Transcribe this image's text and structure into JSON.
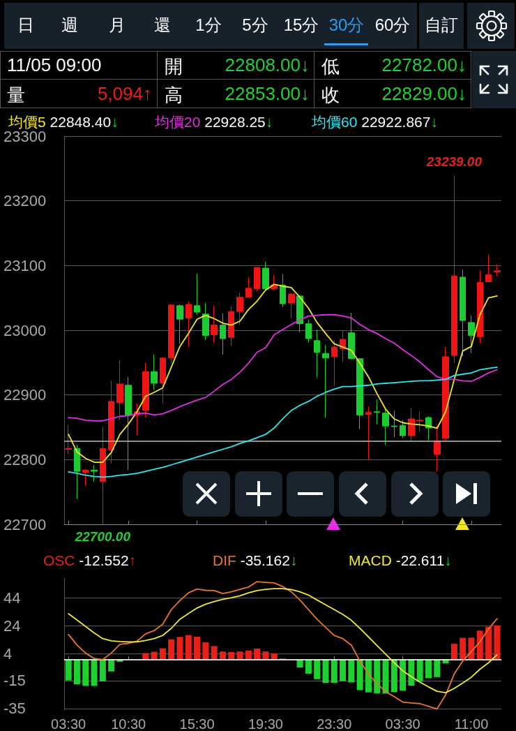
{
  "chart_data": [
    {
      "type": "candlestick",
      "categories": [
        "03:30",
        null,
        null,
        null,
        null,
        null,
        null,
        "10:30",
        null,
        null,
        null,
        null,
        null,
        null,
        null,
        "15:30",
        null,
        null,
        null,
        null,
        null,
        null,
        null,
        "19:30",
        null,
        null,
        null,
        null,
        null,
        null,
        null,
        "23:30",
        null,
        null,
        null,
        null,
        null,
        null,
        null,
        "03:30",
        null,
        null,
        null,
        null,
        null,
        null,
        null,
        "11:00",
        null,
        null,
        null
      ],
      "ohlc": [
        [
          22816,
          22853,
          22809,
          22817
        ],
        [
          22817,
          22823,
          22739,
          22782
        ],
        [
          22780,
          22785,
          22760,
          22784
        ],
        [
          22784,
          22792,
          22766,
          22782
        ],
        [
          22766,
          22851,
          22700,
          22817
        ],
        [
          22815,
          22922,
          22794,
          22890
        ],
        [
          22888,
          22954,
          22861,
          22917
        ],
        [
          22915,
          22928,
          22784,
          22869
        ],
        [
          22869,
          22887,
          22838,
          22874
        ],
        [
          22876,
          22950,
          22865,
          22936
        ],
        [
          22936,
          22963,
          22908,
          22918
        ],
        [
          22918,
          22958,
          22887,
          22957
        ],
        [
          22957,
          23040,
          22949,
          23039
        ],
        [
          23038,
          23040,
          22979,
          23017
        ],
        [
          23019,
          23045,
          22974,
          23040
        ],
        [
          23038,
          23088,
          23024,
          23028
        ],
        [
          23025,
          23042,
          22985,
          22992
        ],
        [
          22993,
          23038,
          22981,
          23008
        ],
        [
          23008,
          23026,
          22962,
          22987
        ],
        [
          22989,
          23037,
          22976,
          23029
        ],
        [
          23029,
          23058,
          23008,
          23051
        ],
        [
          23051,
          23082,
          23051,
          23065
        ],
        [
          23064,
          23097,
          23060,
          23097
        ],
        [
          23096,
          23106,
          23062,
          23064
        ],
        [
          23064,
          23085,
          23062,
          23070
        ],
        [
          23070,
          23087,
          23036,
          23041
        ],
        [
          23042,
          23058,
          23018,
          23056
        ],
        [
          23053,
          23054,
          22997,
          23010
        ],
        [
          23010,
          23016,
          22981,
          22987
        ],
        [
          22984,
          23001,
          22927,
          22966
        ],
        [
          22964,
          22977,
          22865,
          22957
        ],
        [
          22959,
          22985,
          22914,
          22974
        ],
        [
          22971,
          22999,
          22951,
          22986
        ],
        [
          22996,
          23027,
          22955,
          22956
        ],
        [
          22956,
          22957,
          22847,
          22869
        ],
        [
          22870,
          22882,
          22800,
          22873
        ],
        [
          22874,
          22893,
          22855,
          22873
        ],
        [
          22872,
          22881,
          22823,
          22852
        ],
        [
          22852,
          22876,
          22835,
          22851
        ],
        [
          22853,
          22861,
          22833,
          22837
        ],
        [
          22837,
          22880,
          22828,
          22863
        ],
        [
          22860,
          22874,
          22843,
          22861
        ],
        [
          22865,
          22867,
          22830,
          22849
        ],
        [
          22808,
          22853,
          22782,
          22829
        ],
        [
          22833,
          22974,
          22829,
          22959
        ],
        [
          22961,
          23239,
          22949,
          23084
        ],
        [
          23082,
          23094,
          22960,
          23015
        ],
        [
          23012,
          23023,
          22965,
          22992
        ],
        [
          22990,
          23093,
          22980,
          23074
        ],
        [
          23075,
          23117,
          23075,
          23086
        ],
        [
          23090,
          23102,
          23084,
          23092
        ]
      ],
      "colors": [
        "#f01414",
        "#1ccc32",
        "#f01414",
        "#1ccc32",
        "#f01414",
        "#f01414",
        "#f01414",
        "#1ccc32",
        "#f01414",
        "#f01414",
        "#1ccc32",
        "#f01414",
        "#f01414",
        "#1ccc32",
        "#f01414",
        "#1ccc32",
        "#1ccc32",
        "#f01414",
        "#1ccc32",
        "#f01414",
        "#f01414",
        "#f01414",
        "#f01414",
        "#1ccc32",
        "#f01414",
        "#1ccc32",
        "#f01414",
        "#1ccc32",
        "#1ccc32",
        "#1ccc32",
        "#1ccc32",
        "#f01414",
        "#f01414",
        "#1ccc32",
        "#1ccc32",
        "#f01414",
        "#1ccc32",
        "#1ccc32",
        "#1ccc32",
        "#1ccc32",
        "#f01414",
        "#f01414",
        "#1ccc32",
        "#f01414",
        "#f01414",
        "#f01414",
        "#1ccc32",
        "#1ccc32",
        "#f01414",
        "#f01414",
        "#f01414"
      ],
      "series": [
        {
          "type": "line",
          "name": "均價5",
          "color": "#f2e62b",
          "values": [
            22839,
            22812,
            22802,
            22796,
            22796,
            22811,
            22839,
            22855,
            22874,
            22898,
            22904,
            22911,
            22943,
            22975,
            22995,
            23017,
            23023,
            23018,
            23011,
            23008,
            23014,
            23032,
            23045,
            23062,
            23071,
            23068,
            23066,
            23051,
            23034,
            23012,
            22995,
            22979,
            22974,
            22969,
            22949,
            22928,
            22902,
            22878,
            22863,
            22857,
            22855,
            22854,
            22852,
            22848.4,
            22874,
            22924,
            22968,
            22975,
            23024,
            23050,
            23053
          ]
        },
        {
          "type": "line",
          "name": "均價20",
          "color": "#e22ee2",
          "values": [
            22865,
            22864,
            22861,
            22860,
            22860,
            22863,
            22867,
            22868,
            22871,
            22872,
            22869,
            22871,
            22876,
            22882,
            22887,
            22892,
            22896,
            22906,
            22916,
            22924,
            22935,
            22949,
            22966,
            22973,
            22993,
            23001,
            23009,
            23016,
            23022,
            23023,
            23024,
            23024,
            23022,
            23019,
            23009,
            23001,
            22995,
            22987,
            22980,
            22970,
            22961,
            22951,
            22939,
            22928.25,
            22924,
            22924,
            22922,
            22921,
            22927,
            22934,
            22939
          ]
        },
        {
          "type": "line",
          "name": "均價60",
          "color": "#2ee6ee",
          "values": [
            22781,
            22779,
            22776,
            22774,
            22773,
            22774,
            22776,
            22777,
            22779,
            22782,
            22785,
            22788,
            22792,
            22796,
            22800,
            22804,
            22808,
            22812,
            22816,
            22820,
            22825,
            22829,
            22834,
            22839,
            22849,
            22863,
            22876,
            22884,
            22890,
            22898,
            22904,
            22909,
            22913,
            22913,
            22914,
            22915,
            22917,
            22918,
            22919,
            22920,
            22921,
            22922,
            22922,
            22922.867,
            22924,
            22930,
            22932,
            22934,
            22939,
            22941,
            22943
          ]
        }
      ],
      "ylim": [
        22700,
        23300
      ],
      "yticks": [
        22700,
        22800,
        22900,
        23000,
        23100,
        23200,
        23300
      ],
      "grid": "y",
      "tick_labels": "y",
      "legend": "top left",
      "marker": "none",
      "ref_lines": [
        {
          "axis": "y",
          "value": 22829,
          "color": "#bbbbbb"
        }
      ],
      "annotations": [
        "日",
        "週",
        "月",
        "還",
        "1分",
        "5分",
        "15分",
        "30分",
        "60分",
        "自訂",
        "11/05 09:00",
        "開",
        "22808.00↓",
        "低",
        "22782.00↓",
        "量",
        "5,094↑",
        "高",
        "22853.00↓",
        "收",
        "22829.00↓",
        "22848.40↓",
        "22928.25↓",
        "22922.867↓",
        {
          "text": "23239.00",
          "y": 23239
        },
        {
          "text": "22700.00",
          "y": 22700
        }
      ]
    },
    {
      "type": "bar",
      "categories": [
        "03:30",
        null,
        null,
        null,
        null,
        null,
        null,
        "10:30",
        null,
        null,
        null,
        null,
        null,
        null,
        null,
        "15:30",
        null,
        null,
        null,
        null,
        null,
        null,
        null,
        "19:30",
        null,
        null,
        null,
        null,
        null,
        null,
        null,
        "23:30",
        null,
        null,
        null,
        null,
        null,
        null,
        null,
        "03:30",
        null,
        null,
        null,
        null,
        null,
        null,
        null,
        "11:00",
        null,
        null,
        null
      ],
      "series": [
        {
          "name": "OSC",
          "color": "#e8201a",
          "colors": [
            "#1fd130",
            "#1fd130",
            "#1fd130",
            "#1fd130",
            "#1fd130",
            "#1fd130",
            "#1fd130",
            "#1fd130",
            "#e8201a",
            "#e8201a",
            "#e8201a",
            "#e8201a",
            "#e8201a",
            "#e8201a",
            "#e8201a",
            "#e8201a",
            "#e8201a",
            "#e8201a",
            "#e8201a",
            "#e8201a",
            "#e8201a",
            "#e8201a",
            "#e8201a",
            "#e8201a",
            "#e8201a",
            "#e8201a",
            "#1fd130",
            "#1fd130",
            "#1fd130",
            "#1fd130",
            "#1fd130",
            "#1fd130",
            "#1fd130",
            "#1fd130",
            "#1fd130",
            "#1fd130",
            "#1fd130",
            "#1fd130",
            "#1fd130",
            "#1fd130",
            "#1fd130",
            "#1fd130",
            "#1fd130",
            "#1fd130",
            "#1fd130",
            "#e8201a",
            "#e8201a",
            "#e8201a",
            "#e8201a",
            "#e8201a",
            "#e8201a"
          ],
          "values": [
            -14.9,
            -17.7,
            -18.8,
            -18.8,
            -15.6,
            -8.5,
            -1.6,
            null,
            null,
            4.6,
            5.5,
            8,
            14.4,
            16.1,
            17.4,
            16.3,
            12.2,
            9.6,
            5.7,
            5.3,
            5.7,
            6.4,
            7.8,
            5.7,
            4.4,
            0.7,
            null,
            -5.7,
            -10.1,
            -14,
            -16.7,
            -16.7,
            -15.4,
            -16.3,
            -21.8,
            -23.4,
            -24.1,
            -24.3,
            -23.2,
            -22.2,
            -18.6,
            -15.8,
            -13.3,
            -12.552,
            -2.8,
            11.2,
            15.4,
            15.6,
            20.6,
            23.2,
            24.3
          ]
        },
        {
          "type": "line",
          "name": "DIF",
          "color": "#e8762a",
          "values": [
            17.9,
            10.3,
            4.6,
            0.7,
            0,
            4.6,
            10.8,
            11.5,
            13.1,
            18.3,
            20.6,
            25.2,
            35.6,
            42,
            47.5,
            50.2,
            49.3,
            49.1,
            47,
            48.2,
            50,
            51.6,
            55.5,
            55,
            54.6,
            52,
            48.2,
            42.4,
            35.6,
            28.7,
            22.9,
            17.2,
            14.9,
            10.3,
            -1.1,
            -10.3,
            -17.2,
            -22.9,
            -26.4,
            -30.3,
            -31,
            -31.4,
            -33.3,
            -35.162,
            -25.2,
            -10.3,
            -1.1,
            5.7,
            12.6,
            21.8,
            29.1
          ]
        },
        {
          "type": "line",
          "name": "MACD",
          "color": "#efe83a",
          "values": [
            32.6,
            28.2,
            23.6,
            19,
            14.9,
            13.3,
            12.8,
            12.6,
            12.6,
            13.5,
            14.9,
            17.2,
            22.2,
            28.7,
            32.8,
            36.7,
            39.4,
            41.3,
            42.9,
            44,
            45.4,
            47.5,
            49.1,
            50,
            50.5,
            50.5,
            49.8,
            48.2,
            45.9,
            42.4,
            39,
            35.6,
            32.1,
            28,
            22.2,
            16.1,
            9.9,
            3.9,
            -2.3,
            -8,
            -12.2,
            -16.1,
            -19.5,
            -22.611,
            -23.6,
            -20.6,
            -16.7,
            -12.6,
            -6.9,
            -2.3,
            3.4
          ]
        }
      ],
      "ylim": [
        -36,
        58
      ],
      "yticks": [
        44,
        24,
        4,
        -15,
        -35
      ],
      "grid": "y",
      "legend": "top left",
      "marker": "none",
      "ref_lines": [
        {
          "axis": "y",
          "value": 0,
          "color": "#ffffff"
        }
      ],
      "annotations": [
        "-12.552↑",
        "-35.162↓",
        "-22.611↓"
      ]
    }
  ]
}
